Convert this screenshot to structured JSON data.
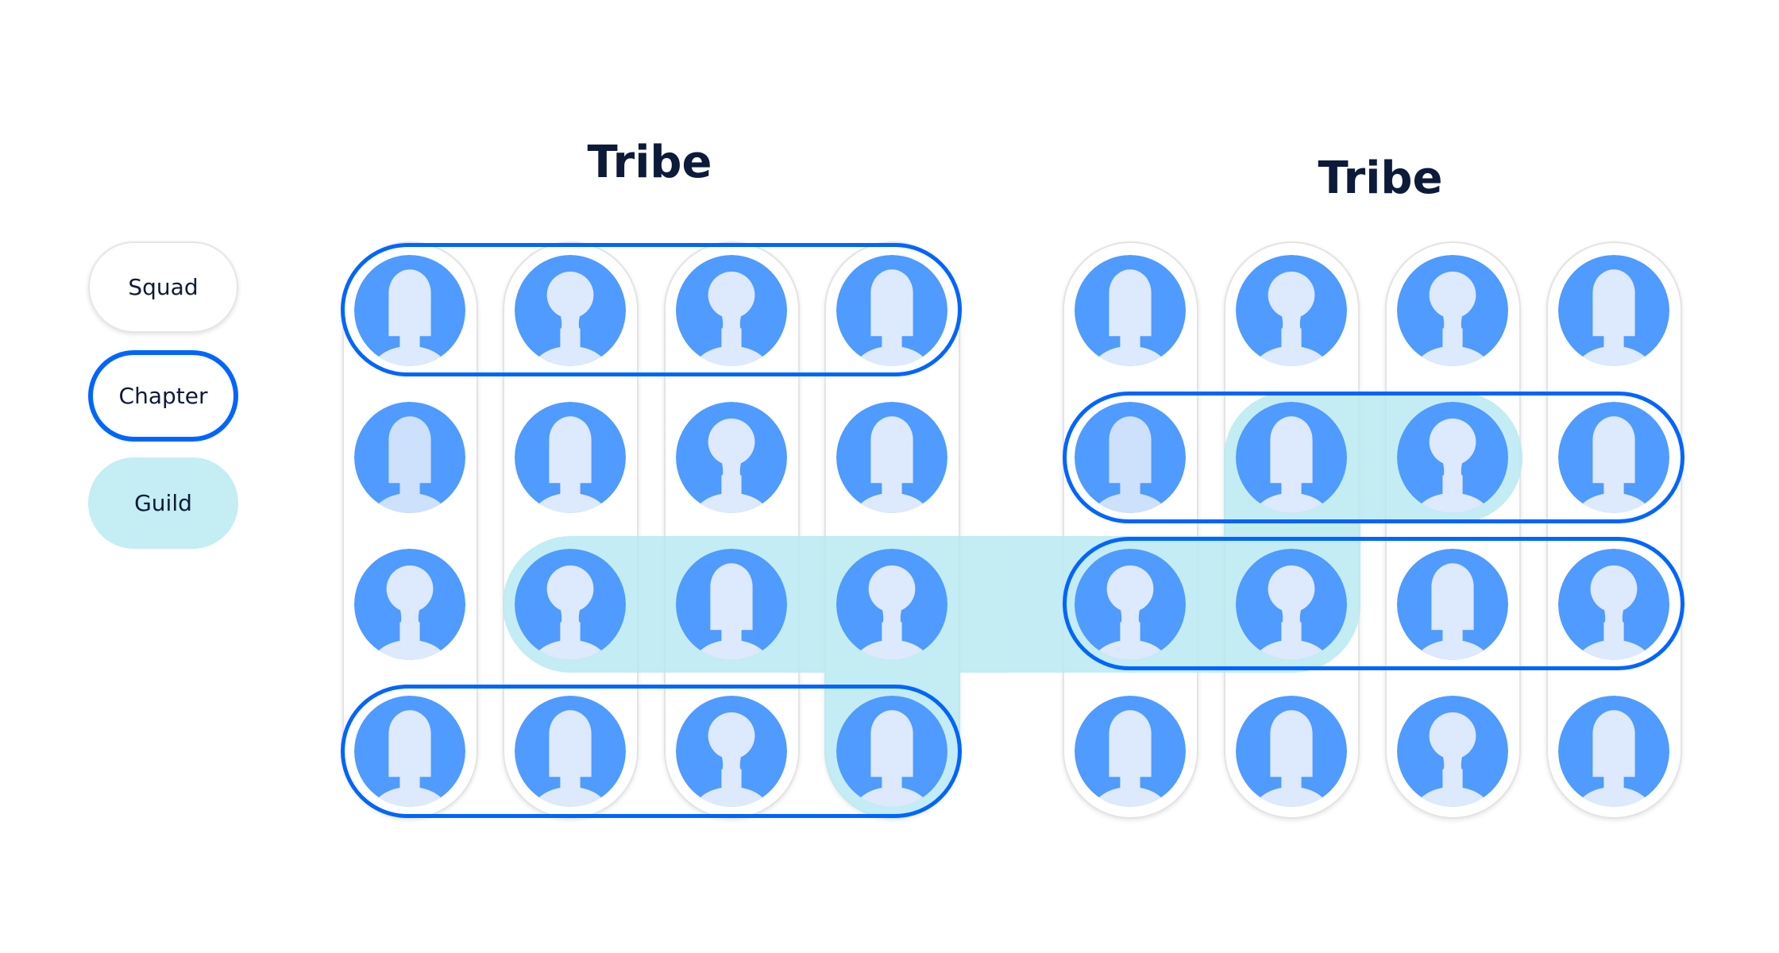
{
  "legend": {
    "squad_label": "Squad",
    "chapter_label": "Chapter",
    "guild_label": "Guild"
  },
  "tribes": [
    {
      "title": "Tribe"
    },
    {
      "title": "Tribe"
    }
  ],
  "avatar_grid": [
    [
      "person-short-hair-icon",
      "person-long-hair-icon",
      "person-long-hair-icon",
      "person-short-hair-icon"
    ],
    [
      "person-short-hair-icon",
      "person-short-hair-icon",
      "person-long-hair-icon",
      "person-short-hair-icon"
    ],
    [
      "person-long-hair-icon",
      "person-long-hair-icon",
      "person-short-hair-icon",
      "person-long-hair-icon"
    ],
    [
      "person-short-hair-icon",
      "person-short-hair-icon",
      "person-long-hair-icon",
      "person-short-hair-icon"
    ]
  ],
  "colors": {
    "chapter_outline": "#0065ff",
    "guild_fill": "#c4edf4",
    "avatar_blue": "#4f9bff",
    "avatar_light": "#dde9fc",
    "avatar_highlight": "#cde0fc",
    "text": "#0d1a3a"
  }
}
